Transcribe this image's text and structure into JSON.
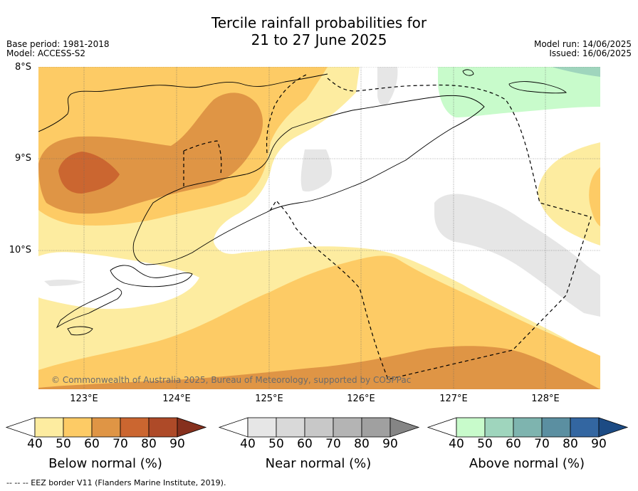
{
  "title_line1": "Tercile rainfall probabilities for",
  "title_line2": "21 to 27 June 2025",
  "base_period": "Base period: 1981-2018",
  "model": "Model: ACCESS-S2",
  "model_run": "Model run: 14/06/2025",
  "issued": "Issued: 16/06/2025",
  "lat_labels": [
    "8°S",
    "9°S",
    "10°S"
  ],
  "lon_labels": [
    "123°E",
    "124°E",
    "125°E",
    "126°E",
    "127°E",
    "128°E"
  ],
  "copyright": "© Commonwealth of Australia 2025, Bureau of Meteorology, supported by COSPPac",
  "footer": "-- -- -- EEZ border V11 (Flanders Marine Institute, 2019).",
  "colorbars": [
    {
      "title": "Below normal (%)",
      "ticks": [
        "40",
        "50",
        "60",
        "70",
        "80",
        "90"
      ],
      "colors": [
        "#fdeca0",
        "#fdcb65",
        "#df9545",
        "#cb6630",
        "#ae4a28",
        "#86301d"
      ]
    },
    {
      "title": "Near normal (%)",
      "ticks": [
        "40",
        "50",
        "60",
        "70",
        "80",
        "90"
      ],
      "colors": [
        "#e6e6e6",
        "#d9d9d9",
        "#c8c8c8",
        "#b4b4b4",
        "#a0a0a0",
        "#858585"
      ]
    },
    {
      "title": "Above normal (%)",
      "ticks": [
        "40",
        "50",
        "60",
        "70",
        "80",
        "90"
      ],
      "colors": [
        "#c8fbcb",
        "#9fd5bd",
        "#7eb4af",
        "#5b8fa1",
        "#3366a1",
        "#1c4b84"
      ]
    }
  ],
  "colors": {
    "below_40_50": "#fdeca0",
    "below_50_60": "#fdcb65",
    "below_60_70": "#df9545",
    "below_70_80": "#cb6630",
    "near_40_50": "#e6e6e6",
    "above_40_50": "#c8fbcb",
    "above_50_60": "#9fd5bd"
  }
}
